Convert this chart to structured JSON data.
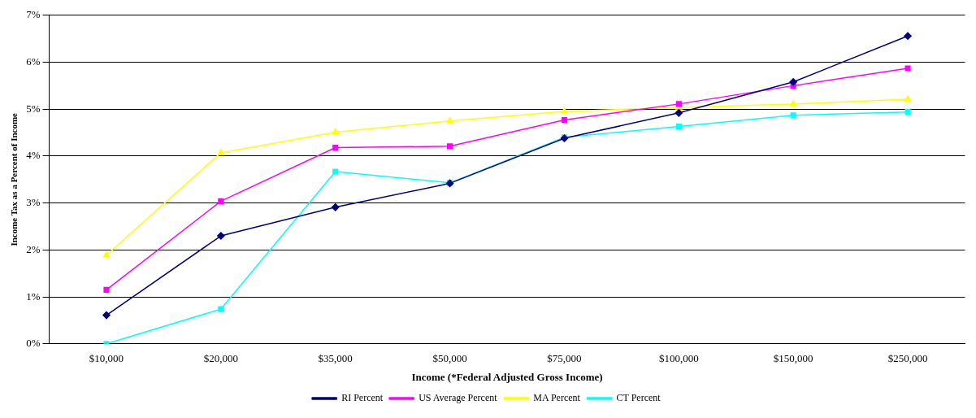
{
  "chart_data": {
    "type": "line",
    "xlabel": "Income (*Federal Adjusted Gross Income)",
    "ylabel": "Income Tax as a Percent of Income",
    "categories": [
      "$10,000",
      "$20,000",
      "$35,000",
      "$50,000",
      "$75,000",
      "$100,000",
      "$150,000",
      "$250,000"
    ],
    "series": [
      {
        "name": "RI Percent",
        "color": "#000080",
        "marker": "diamond",
        "values": [
          0.61,
          2.3,
          2.91,
          3.42,
          4.38,
          4.92,
          5.58,
          6.56
        ]
      },
      {
        "name": "US Average Percent",
        "color": "#ff00ff",
        "marker": "square",
        "values": [
          1.15,
          3.04,
          4.18,
          4.21,
          4.77,
          5.11,
          5.5,
          5.87
        ]
      },
      {
        "name": "MA Percent",
        "color": "#ffff00",
        "marker": "triangle",
        "values": [
          1.89,
          4.07,
          4.51,
          4.75,
          4.95,
          5.04,
          5.11,
          5.21
        ]
      },
      {
        "name": "CT Percent",
        "color": "#00ffff",
        "marker": "square",
        "values": [
          0,
          0.74,
          3.67,
          3.43,
          4.4,
          4.63,
          4.87,
          4.94
        ]
      }
    ],
    "ylim": [
      0,
      7
    ],
    "yticks": [
      {
        "value": 0,
        "label": "0%"
      },
      {
        "value": 1,
        "label": "1%"
      },
      {
        "value": 2,
        "label": "2%"
      },
      {
        "value": 3,
        "label": "3%"
      },
      {
        "value": 4,
        "label": "4%"
      },
      {
        "value": 5,
        "label": "5%"
      },
      {
        "value": 6,
        "label": "6%"
      },
      {
        "value": 7,
        "label": "7%"
      }
    ],
    "grid": "y",
    "legend": "bottom",
    "line_style": "solid"
  }
}
